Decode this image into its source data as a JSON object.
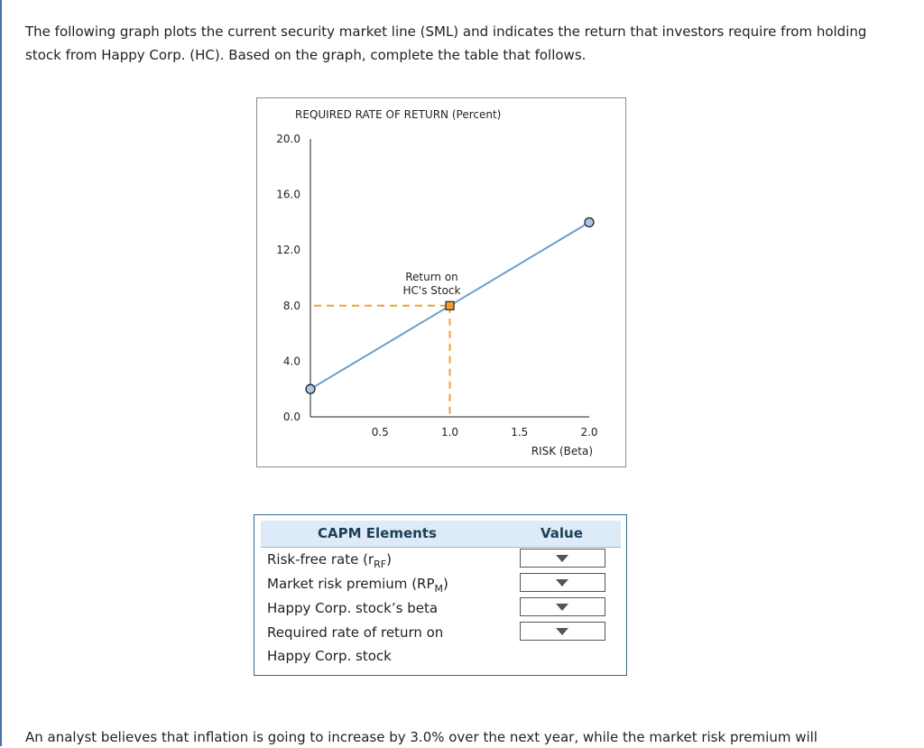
{
  "intro_text": "The following graph plots the current security market line (SML) and indicates the return that investors require from holding stock from Happy Corp. (HC). Based on the graph, complete the table that follows.",
  "chart_data": {
    "type": "line",
    "ylabel": "REQUIRED RATE OF RETURN (Percent)",
    "xlabel": "RISK (Beta)",
    "y_ticks": [
      "20.0",
      "16.0",
      "12.0",
      "8.0",
      "4.0",
      "0.0"
    ],
    "x_ticks": [
      "0.5",
      "1.0",
      "1.5",
      "2.0"
    ],
    "xlim": [
      0,
      2
    ],
    "ylim": [
      0,
      20
    ],
    "series": [
      {
        "x": [
          0,
          2.0
        ],
        "y": [
          2.0,
          14.0
        ],
        "color": "#6a9ed0"
      }
    ],
    "marker": {
      "x": 1.0,
      "y": 8.0,
      "label_line1": "Return on",
      "label_line2": "HC's Stock",
      "color": "#f0a030"
    },
    "grid": false
  },
  "table": {
    "header_element": "CAPM Elements",
    "header_value": "Value",
    "rows": [
      {
        "label": "Risk-free rate (r",
        "sub": "RF",
        "suffix": ")"
      },
      {
        "label": "Market risk premium (RP",
        "sub": "M",
        "suffix": ")"
      },
      {
        "label": "Happy Corp. stock’s beta",
        "sub": "",
        "suffix": ""
      },
      {
        "label": "Required rate of return on",
        "sub": "",
        "suffix": ""
      }
    ],
    "row_continuation": "Happy Corp. stock"
  },
  "outro_text": "An analyst believes that inflation is going to increase by 3.0% over the next year, while the market risk premium will"
}
